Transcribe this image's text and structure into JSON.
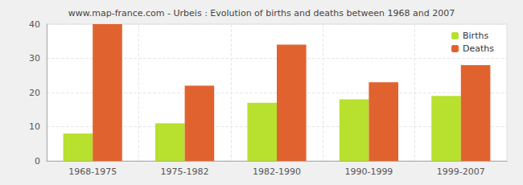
{
  "chart_data": {
    "type": "bar",
    "title": "www.map-france.com - Urbeis : Evolution of births and deaths between 1968 and 2007",
    "categories": [
      "1968-1975",
      "1975-1982",
      "1982-1990",
      "1990-1999",
      "1999-2007"
    ],
    "series": [
      {
        "name": "Births",
        "color": "#b8e02e",
        "values": [
          8,
          11,
          17,
          18,
          19
        ]
      },
      {
        "name": "Deaths",
        "color": "#e0632f",
        "values": [
          40,
          22,
          34,
          23,
          28
        ]
      }
    ],
    "ylim": [
      0,
      40
    ],
    "yticks": [
      0,
      10,
      20,
      30,
      40
    ],
    "grid": true,
    "legend": "top-right"
  }
}
